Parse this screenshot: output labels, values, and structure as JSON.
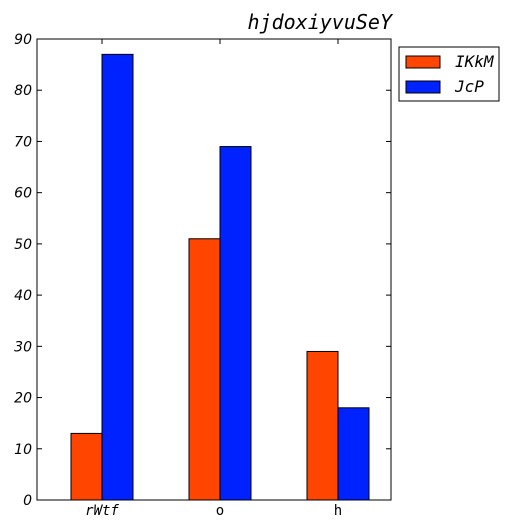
{
  "chart_data": {
    "type": "bar",
    "title": "hjdoxiyvuSeY",
    "xlabel": "",
    "ylabel": "",
    "categories": [
      "rWtf",
      "o",
      "h"
    ],
    "series": [
      {
        "name": "IKkM",
        "color": "#ff4500",
        "values": [
          13,
          51,
          29
        ]
      },
      {
        "name": "JcP",
        "color": "#0022ff",
        "values": [
          87,
          69,
          18
        ]
      }
    ],
    "ylim": [
      0,
      90
    ],
    "yticks": [
      0,
      10,
      20,
      30,
      40,
      50,
      60,
      70,
      80,
      90
    ],
    "grid": false,
    "legend_position": "outside-top-right"
  }
}
